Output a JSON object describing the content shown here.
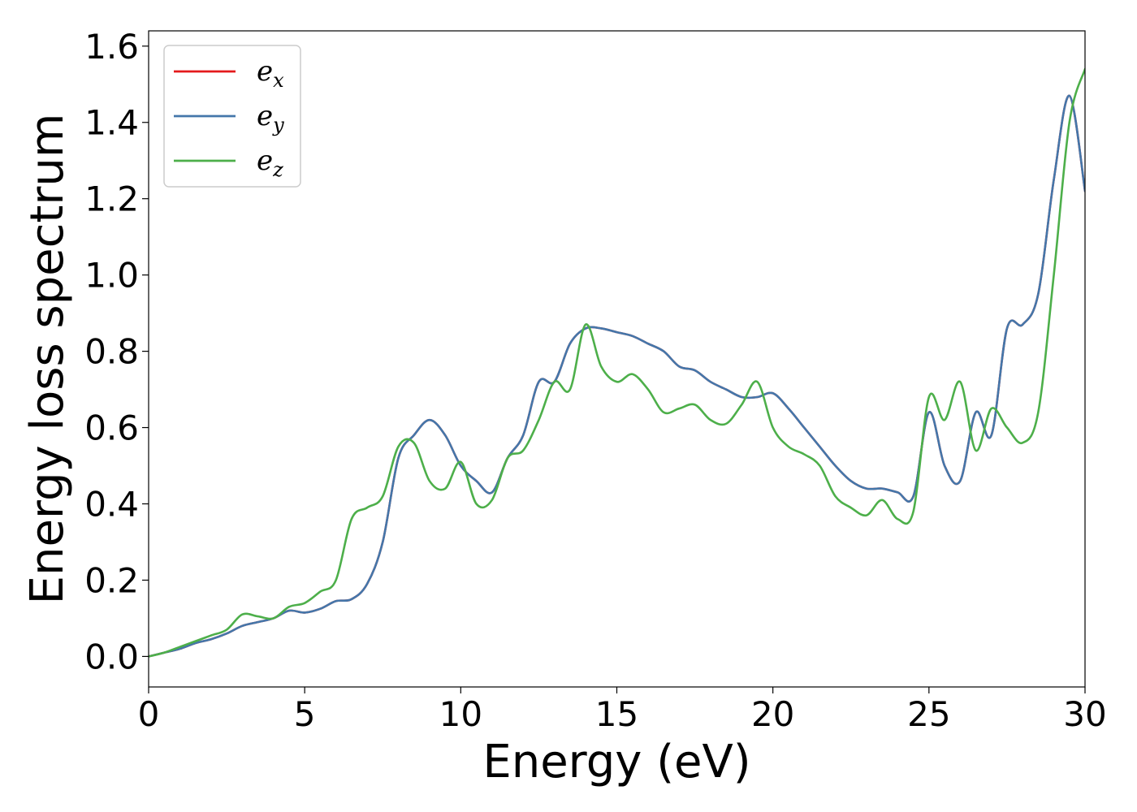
{
  "chart_data": {
    "type": "line",
    "xlabel": "Energy (eV)",
    "ylabel": "Energy loss spectrum",
    "xlim": [
      0,
      30
    ],
    "ylim": [
      -0.08,
      1.64
    ],
    "xticks": [
      0,
      5,
      10,
      15,
      20,
      25,
      30
    ],
    "xtick_labels": [
      "0",
      "5",
      "10",
      "15",
      "20",
      "25",
      "30"
    ],
    "yticks": [
      0.0,
      0.2,
      0.4,
      0.6,
      0.8,
      1.0,
      1.2,
      1.4,
      1.6
    ],
    "ytick_labels": [
      "0.0",
      "0.2",
      "0.4",
      "0.6",
      "0.8",
      "1.0",
      "1.2",
      "1.4",
      "1.6"
    ],
    "grid": false,
    "legend_position": "top-left",
    "series": [
      {
        "name": "e",
        "subscript": "x",
        "color": "#e41a1c",
        "x": [
          0,
          0.5,
          1,
          1.5,
          2,
          2.5,
          3,
          3.5,
          4,
          4.5,
          5,
          5.5,
          6,
          6.5,
          7,
          7.5,
          8,
          8.5,
          9,
          9.5,
          10,
          10.5,
          11,
          11.5,
          12,
          12.5,
          13,
          13.5,
          14,
          14.5,
          15,
          15.5,
          16,
          16.5,
          17,
          17.5,
          18,
          18.5,
          19,
          19.5,
          20,
          20.5,
          21,
          21.5,
          22,
          22.5,
          23,
          23.5,
          24,
          24.5,
          25,
          25.5,
          26,
          26.5,
          27,
          27.5,
          28,
          28.5,
          29,
          29.5,
          30
        ],
        "y": [
          0,
          0.01,
          0.02,
          0.035,
          0.045,
          0.06,
          0.08,
          0.09,
          0.1,
          0.12,
          0.115,
          0.125,
          0.145,
          0.15,
          0.19,
          0.3,
          0.52,
          0.58,
          0.62,
          0.58,
          0.5,
          0.46,
          0.43,
          0.52,
          0.58,
          0.72,
          0.72,
          0.82,
          0.86,
          0.86,
          0.85,
          0.84,
          0.82,
          0.8,
          0.76,
          0.75,
          0.72,
          0.7,
          0.68,
          0.68,
          0.69,
          0.65,
          0.6,
          0.55,
          0.5,
          0.46,
          0.44,
          0.44,
          0.43,
          0.42,
          0.64,
          0.5,
          0.46,
          0.64,
          0.58,
          0.86,
          0.87,
          0.95,
          1.25,
          1.47,
          1.22
        ]
      },
      {
        "name": "e",
        "subscript": "y",
        "color": "#4477aa",
        "x": [
          0,
          0.5,
          1,
          1.5,
          2,
          2.5,
          3,
          3.5,
          4,
          4.5,
          5,
          5.5,
          6,
          6.5,
          7,
          7.5,
          8,
          8.5,
          9,
          9.5,
          10,
          10.5,
          11,
          11.5,
          12,
          12.5,
          13,
          13.5,
          14,
          14.5,
          15,
          15.5,
          16,
          16.5,
          17,
          17.5,
          18,
          18.5,
          19,
          19.5,
          20,
          20.5,
          21,
          21.5,
          22,
          22.5,
          23,
          23.5,
          24,
          24.5,
          25,
          25.5,
          26,
          26.5,
          27,
          27.5,
          28,
          28.5,
          29,
          29.5,
          30
        ],
        "y": [
          0,
          0.01,
          0.02,
          0.035,
          0.045,
          0.06,
          0.08,
          0.09,
          0.1,
          0.12,
          0.115,
          0.125,
          0.145,
          0.15,
          0.19,
          0.3,
          0.52,
          0.58,
          0.62,
          0.58,
          0.5,
          0.46,
          0.43,
          0.52,
          0.58,
          0.72,
          0.72,
          0.82,
          0.86,
          0.86,
          0.85,
          0.84,
          0.82,
          0.8,
          0.76,
          0.75,
          0.72,
          0.7,
          0.68,
          0.68,
          0.69,
          0.65,
          0.6,
          0.55,
          0.5,
          0.46,
          0.44,
          0.44,
          0.43,
          0.42,
          0.64,
          0.5,
          0.46,
          0.64,
          0.58,
          0.86,
          0.87,
          0.95,
          1.25,
          1.47,
          1.22
        ]
      },
      {
        "name": "e",
        "subscript": "z",
        "color": "#4daf4a",
        "x": [
          0,
          0.5,
          1,
          1.5,
          2,
          2.5,
          3,
          3.5,
          4,
          4.5,
          5,
          5.5,
          6,
          6.5,
          7,
          7.5,
          8,
          8.5,
          9,
          9.5,
          10,
          10.5,
          11,
          11.5,
          12,
          12.5,
          13,
          13.5,
          14,
          14.5,
          15,
          15.5,
          16,
          16.5,
          17,
          17.5,
          18,
          18.5,
          19,
          19.5,
          20,
          20.5,
          21,
          21.5,
          22,
          22.5,
          23,
          23.5,
          24,
          24.5,
          25,
          25.5,
          26,
          26.5,
          27,
          27.5,
          28,
          28.5,
          29,
          29.5,
          30
        ],
        "y": [
          0,
          0.01,
          0.025,
          0.04,
          0.055,
          0.07,
          0.11,
          0.105,
          0.1,
          0.13,
          0.14,
          0.17,
          0.2,
          0.36,
          0.39,
          0.42,
          0.55,
          0.56,
          0.46,
          0.44,
          0.51,
          0.4,
          0.41,
          0.52,
          0.54,
          0.62,
          0.72,
          0.7,
          0.87,
          0.76,
          0.72,
          0.74,
          0.7,
          0.64,
          0.65,
          0.66,
          0.62,
          0.61,
          0.66,
          0.72,
          0.6,
          0.55,
          0.53,
          0.5,
          0.42,
          0.39,
          0.37,
          0.41,
          0.36,
          0.38,
          0.68,
          0.62,
          0.72,
          0.54,
          0.65,
          0.6,
          0.56,
          0.64,
          1.0,
          1.4,
          1.54
        ]
      }
    ]
  }
}
